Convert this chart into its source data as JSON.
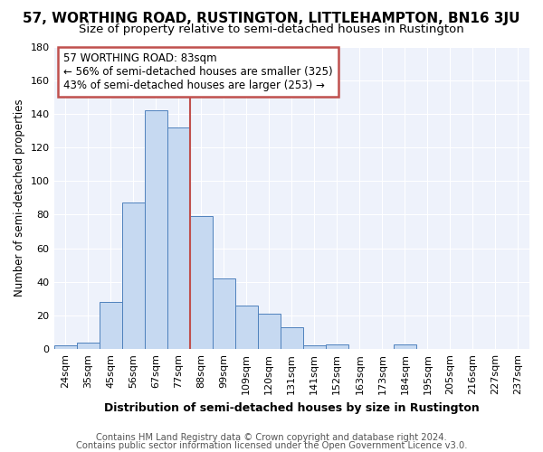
{
  "title": "57, WORTHING ROAD, RUSTINGTON, LITTLEHAMPTON, BN16 3JU",
  "subtitle": "Size of property relative to semi-detached houses in Rustington",
  "xlabel": "Distribution of semi-detached houses by size in Rustington",
  "ylabel": "Number of semi-detached properties",
  "footnote1": "Contains HM Land Registry data © Crown copyright and database right 2024.",
  "footnote2": "Contains public sector information licensed under the Open Government Licence v3.0.",
  "annotation_line1": "57 WORTHING ROAD: 83sqm",
  "annotation_line2": "← 56% of semi-detached houses are smaller (325)",
  "annotation_line3": "43% of semi-detached houses are larger (253) →",
  "categories": [
    "24sqm",
    "35sqm",
    "45sqm",
    "56sqm",
    "67sqm",
    "77sqm",
    "88sqm",
    "99sqm",
    "109sqm",
    "120sqm",
    "131sqm",
    "141sqm",
    "152sqm",
    "163sqm",
    "173sqm",
    "184sqm",
    "195sqm",
    "205sqm",
    "216sqm",
    "227sqm",
    "237sqm"
  ],
  "values": [
    2,
    4,
    28,
    87,
    142,
    132,
    79,
    42,
    26,
    21,
    13,
    2,
    3,
    0,
    0,
    3,
    0,
    0,
    0,
    0,
    0
  ],
  "bar_color": "#c6d9f1",
  "bar_edge_color": "#4f81bd",
  "vline_x": 5.5,
  "vline_color": "#c0504d",
  "annotation_box_color": "#c0504d",
  "ylim": [
    0,
    180
  ],
  "yticks": [
    0,
    20,
    40,
    60,
    80,
    100,
    120,
    140,
    160,
    180
  ],
  "title_fontsize": 11,
  "subtitle_fontsize": 9.5,
  "xlabel_fontsize": 9,
  "ylabel_fontsize": 8.5,
  "tick_fontsize": 8,
  "annotation_fontsize": 8.5,
  "footnote_fontsize": 7.2,
  "background_color": "#eef2fb"
}
